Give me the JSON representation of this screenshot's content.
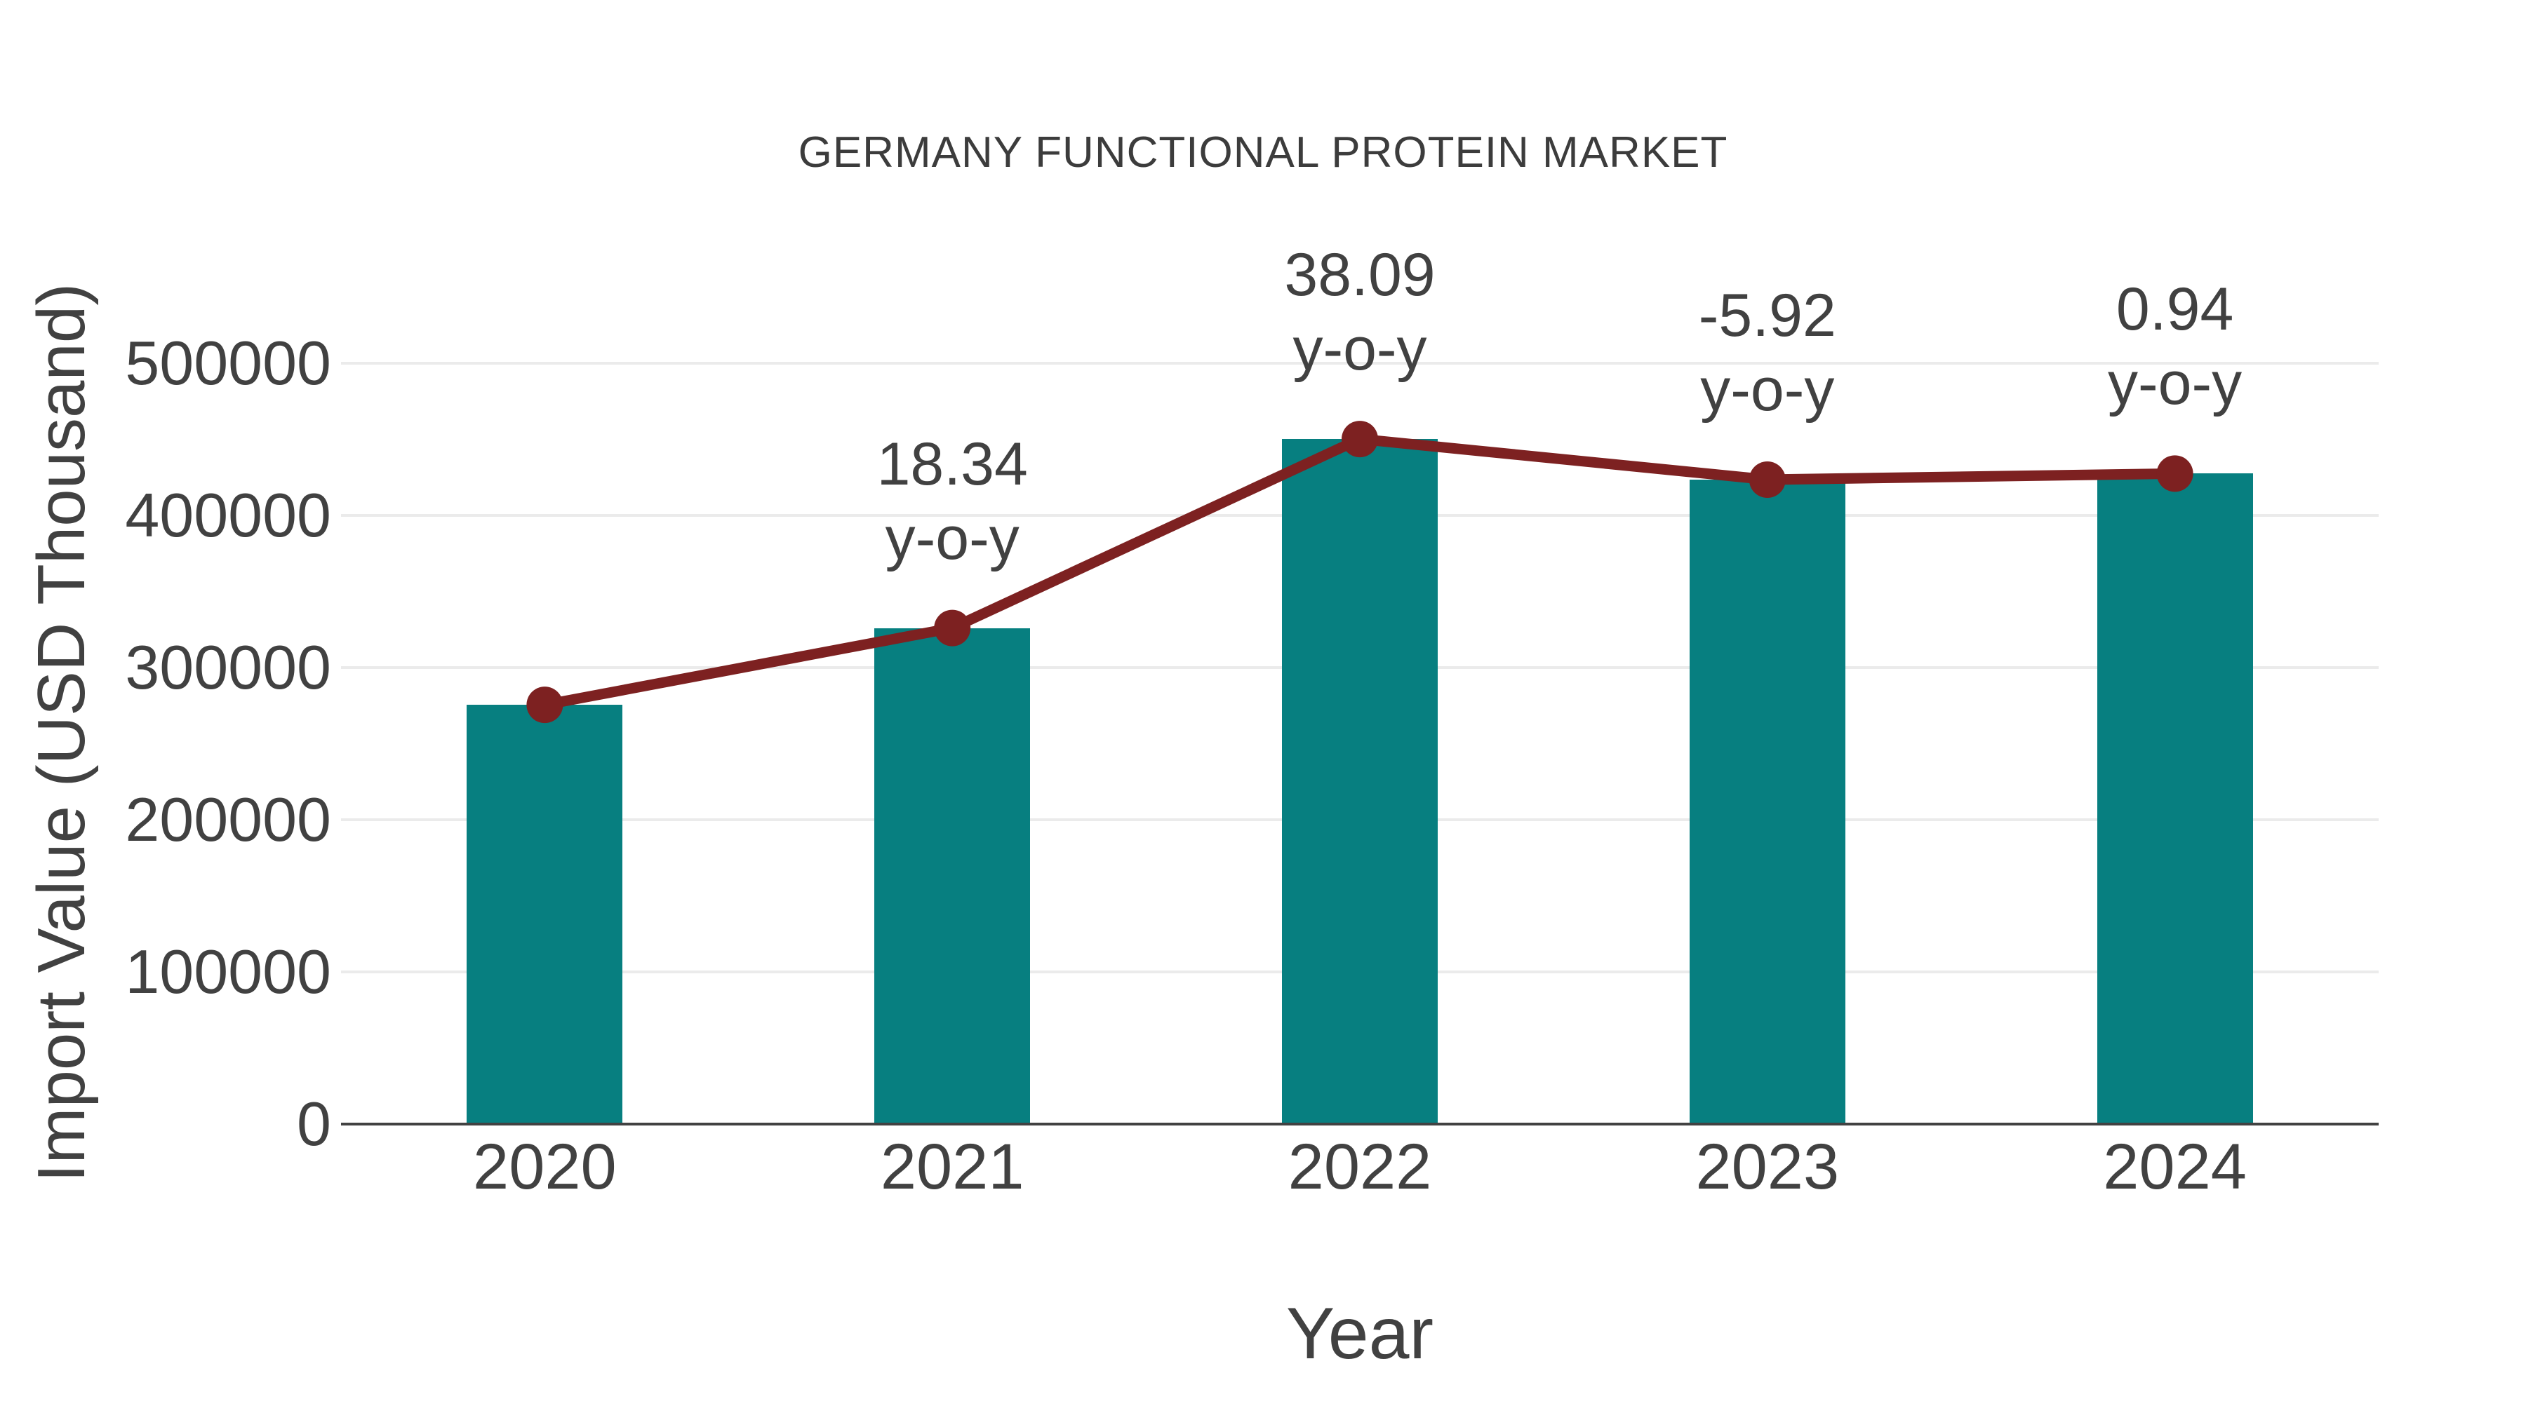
{
  "chart_data": {
    "type": "combo",
    "title": "GERMANY FUNCTIONAL PROTEIN MARKET",
    "xlabel": "Year",
    "ylabel": "Import Value (USD Thousand)",
    "categories": [
      "2020",
      "2021",
      "2022",
      "2023",
      "2024"
    ],
    "series": [
      {
        "name": "import-value-bars",
        "type": "bar",
        "values": [
          275500,
          326000,
          450200,
          423500,
          427500
        ],
        "color": "#077F80"
      },
      {
        "name": "import-value-line",
        "type": "line+markers",
        "values": [
          275500,
          326000,
          450200,
          423500,
          427500
        ],
        "color": "#7D2121"
      }
    ],
    "annotations": [
      {
        "category": "2021",
        "value": "18.34",
        "suffix": "y-o-y"
      },
      {
        "category": "2022",
        "value": "38.09",
        "suffix": "y-o-y"
      },
      {
        "category": "2023",
        "value": "-5.92",
        "suffix": "y-o-y"
      },
      {
        "category": "2024",
        "value": "0.94",
        "suffix": "y-o-y"
      }
    ],
    "yticks": [
      "0",
      "100000",
      "200000",
      "300000",
      "400000",
      "500000"
    ],
    "ylim": [
      0,
      517000
    ],
    "grid": "horizontal",
    "legend_position": "none"
  },
  "colors": {
    "bar": "#077F80",
    "line": "#7D2121",
    "grid": "#EBEBEB",
    "axis": "#424242",
    "text": "#414141",
    "title": "#3C3C3C",
    "background": "#FFFFFF"
  }
}
